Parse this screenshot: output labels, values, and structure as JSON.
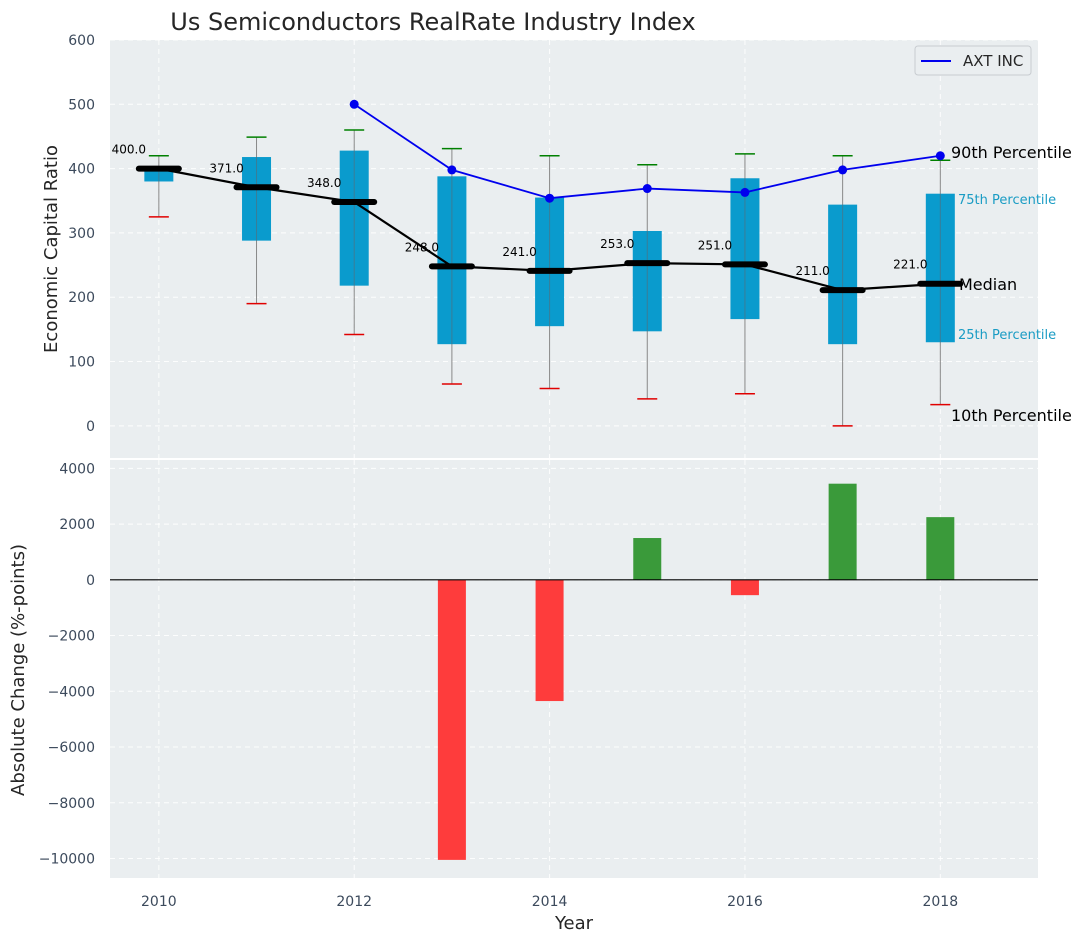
{
  "chart_data": [
    {
      "type": "box",
      "title": "Us Semiconductors RealRate Industry Index",
      "xlabel": "",
      "ylabel": "Economic Capital Ratio",
      "ylim": [
        -50,
        600
      ],
      "yticks": [
        0,
        100,
        200,
        300,
        400,
        500,
        600
      ],
      "x": [
        2010,
        2011,
        2012,
        2013,
        2014,
        2015,
        2016,
        2017,
        2018
      ],
      "p10": [
        325,
        190,
        142,
        65,
        58,
        42,
        50,
        0,
        33
      ],
      "p25": [
        380,
        288,
        218,
        127,
        155,
        147,
        166,
        127,
        130
      ],
      "median": [
        400.0,
        371.0,
        348.0,
        248.0,
        241.0,
        253.0,
        251.0,
        211.0,
        221.0
      ],
      "median_labels": [
        "400.0",
        "371.0",
        "348.0",
        "248.0",
        "241.0",
        "253.0",
        "251.0",
        "211.0",
        "221.0"
      ],
      "p75": [
        400,
        418,
        428,
        388,
        355,
        303,
        385,
        344,
        361
      ],
      "p90": [
        420,
        449,
        460,
        431,
        420,
        406,
        423,
        420,
        413
      ],
      "series": [
        {
          "name": "AXT INC",
          "x": [
            2012,
            2013,
            2014,
            2015,
            2016,
            2017,
            2018
          ],
          "values": [
            500,
            398,
            354,
            369,
            363,
            398,
            420
          ],
          "color": "#0000ee"
        }
      ],
      "legend": {
        "entries": [
          "AXT INC"
        ],
        "placement": "top-right"
      },
      "percentile_labels": {
        "p90": "90th Percentile",
        "p75": "75th Percentile",
        "median": "Median",
        "p25": "25th Percentile",
        "p10": "10th Percentile"
      }
    },
    {
      "type": "bar",
      "title": "",
      "xlabel": "Year",
      "ylabel": "Absolute Change (%-points)",
      "ylim": [
        -10700,
        4300
      ],
      "yticks": [
        -10000,
        -8000,
        -6000,
        -4000,
        -2000,
        0,
        2000,
        4000
      ],
      "ytick_labels": [
        "−10000",
        "−8000",
        "−6000",
        "−4000",
        "−2000",
        "0",
        "2000",
        "4000"
      ],
      "xticks": [
        2010,
        2012,
        2014,
        2016,
        2018
      ],
      "xlim": [
        2009.5,
        2019.0
      ],
      "categories": [
        2013,
        2014,
        2015,
        2016,
        2017,
        2018
      ],
      "values": [
        -10050,
        -4350,
        1500,
        -550,
        3450,
        2250
      ],
      "colors": {
        "positive": "#3a9a3a",
        "negative": "#fe3c3c"
      }
    }
  ],
  "colors": {
    "plot_bg": "#eaeef0",
    "box_fill": "#0a9bcd",
    "p90_cap": "#008000",
    "p10_cap": "#e00000",
    "median_line": "#000000",
    "whisker": "#888888"
  }
}
